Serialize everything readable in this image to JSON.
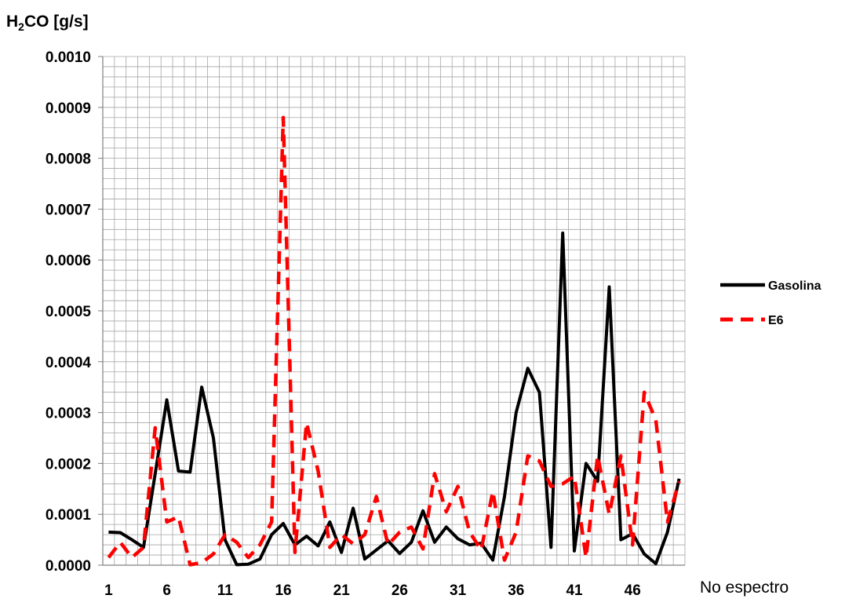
{
  "chart_data": {
    "type": "line",
    "title": "",
    "ylabel": {
      "main": "H",
      "sub": "2",
      "rest": "CO [g/s]"
    },
    "xlabel": "No espectro",
    "ylim": [
      0,
      0.001
    ],
    "y_ticks": [
      "0.0000",
      "0.0001",
      "0.0002",
      "0.0003",
      "0.0004",
      "0.0005",
      "0.0006",
      "0.0007",
      "0.0008",
      "0.0009",
      "0.0010"
    ],
    "y_tick_values": [
      0,
      0.0001,
      0.0002,
      0.0003,
      0.0004,
      0.0005,
      0.0006,
      0.0007,
      0.0008,
      0.0009,
      0.001
    ],
    "x_ticks": [
      1,
      6,
      11,
      16,
      21,
      26,
      31,
      36,
      41,
      46
    ],
    "x_range": [
      1,
      50
    ],
    "grid": true,
    "legend_position": "right",
    "x": [
      1,
      2,
      3,
      4,
      5,
      6,
      7,
      8,
      9,
      10,
      11,
      12,
      13,
      14,
      15,
      16,
      17,
      18,
      19,
      20,
      21,
      22,
      23,
      24,
      25,
      26,
      27,
      28,
      29,
      30,
      31,
      32,
      33,
      34,
      35,
      36,
      37,
      38,
      39,
      40,
      41,
      42,
      43,
      44,
      45,
      46,
      47,
      48,
      49,
      50
    ],
    "series": [
      {
        "name": "Gasolina",
        "color": "#000000",
        "dash": "solid",
        "values": [
          6.5e-05,
          6.4e-05,
          5e-05,
          3.5e-05,
          0.00018,
          0.000325,
          0.000185,
          0.000183,
          0.00035,
          0.00025,
          5e-05,
          1e-06,
          2e-06,
          1.2e-05,
          6e-05,
          8.2e-05,
          4e-05,
          5.7e-05,
          3.8e-05,
          8.5e-05,
          2.5e-05,
          0.000112,
          1.2e-05,
          3e-05,
          4.8e-05,
          2.3e-05,
          4.5e-05,
          0.000107,
          4.5e-05,
          7.5e-05,
          5.2e-05,
          4e-05,
          4.3e-05,
          1e-05,
          0.000135,
          0.0003,
          0.000387,
          0.00034,
          3.5e-05,
          0.000653,
          2.8e-05,
          0.0002,
          0.000165,
          0.000547,
          5e-05,
          6.2e-05,
          2.2e-05,
          3e-06,
          6.5e-05,
          0.00017
        ]
      },
      {
        "name": "E6",
        "color": "#ff0000",
        "dash": "dashed",
        "values": [
          1.5e-05,
          4.5e-05,
          1.5e-05,
          3.5e-05,
          0.00027,
          8.5e-05,
          9.5e-05,
          1e-06,
          5e-06,
          2.2e-05,
          6e-05,
          4.5e-05,
          1.5e-05,
          4e-05,
          8.5e-05,
          0.00088,
          2.5e-05,
          0.00028,
          0.000185,
          3.5e-05,
          6e-05,
          4.2e-05,
          6e-05,
          0.000135,
          4e-05,
          6.5e-05,
          7.5e-05,
          3.2e-05,
          0.00018,
          0.000105,
          0.000155,
          6.5e-05,
          3e-05,
          0.000145,
          1e-05,
          6.5e-05,
          0.000215,
          0.000205,
          0.000155,
          0.00016,
          0.000175,
          1.5e-05,
          0.000215,
          0.0001,
          0.000215,
          4e-05,
          0.00034,
          0.000285,
          8.5e-05,
          0.000165
        ]
      }
    ]
  }
}
